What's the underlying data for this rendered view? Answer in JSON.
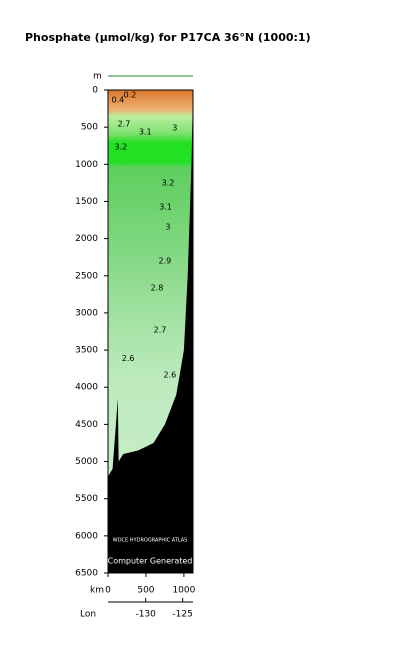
{
  "chart_data": {
    "type": "contour",
    "title": "Phosphate (μmol/kg) for P17CA 36°N (1000:1)",
    "top_axis_label": "m",
    "x_axis_label": "km",
    "lon_axis_label": "Lon",
    "xlim": [
      0,
      1120
    ],
    "xticks": [
      0,
      500,
      1000
    ],
    "ylim": [
      0,
      6500
    ],
    "yticks": [
      0,
      500,
      1000,
      1500,
      2000,
      2500,
      3000,
      3500,
      4000,
      4500,
      5000,
      5500,
      6000,
      6500
    ],
    "lonlim": [
      -135.1,
      -123.6
    ],
    "lonticks": [
      -130,
      -125
    ],
    "bottom": {
      "x": [
        0,
        60,
        130,
        140,
        200,
        400,
        600,
        750,
        900,
        1000,
        1050,
        1100,
        1120
      ],
      "y": [
        5200,
        5100,
        4150,
        5000,
        4900,
        4850,
        4750,
        4500,
        4100,
        3500,
        2500,
        1000,
        0
      ],
      "color": "#000000"
    },
    "contour_labels": [
      {
        "value": 0.4,
        "x": 130,
        "y": 135
      },
      {
        "value": 0.2,
        "x": 290,
        "y": 70
      },
      {
        "value": 2.7,
        "x": 210,
        "y": 460
      },
      {
        "value": 3.1,
        "x": 490,
        "y": 565
      },
      {
        "value": 3,
        "x": 880,
        "y": 510
      },
      {
        "value": 3.2,
        "x": 170,
        "y": 770
      },
      {
        "value": 3.2,
        "x": 790,
        "y": 1250
      },
      {
        "value": 3.1,
        "x": 760,
        "y": 1575
      },
      {
        "value": 3,
        "x": 790,
        "y": 1845
      },
      {
        "value": 2.9,
        "x": 750,
        "y": 2300
      },
      {
        "value": 2.8,
        "x": 645,
        "y": 2665
      },
      {
        "value": 2.7,
        "x": 685,
        "y": 3230
      },
      {
        "value": 2.6,
        "x": 265,
        "y": 3610
      },
      {
        "value": 2.6,
        "x": 815,
        "y": 3835
      }
    ],
    "atlas_label": "WOCE HYDROGRAPHIC ATLAS",
    "footer": "Computer Generated"
  }
}
